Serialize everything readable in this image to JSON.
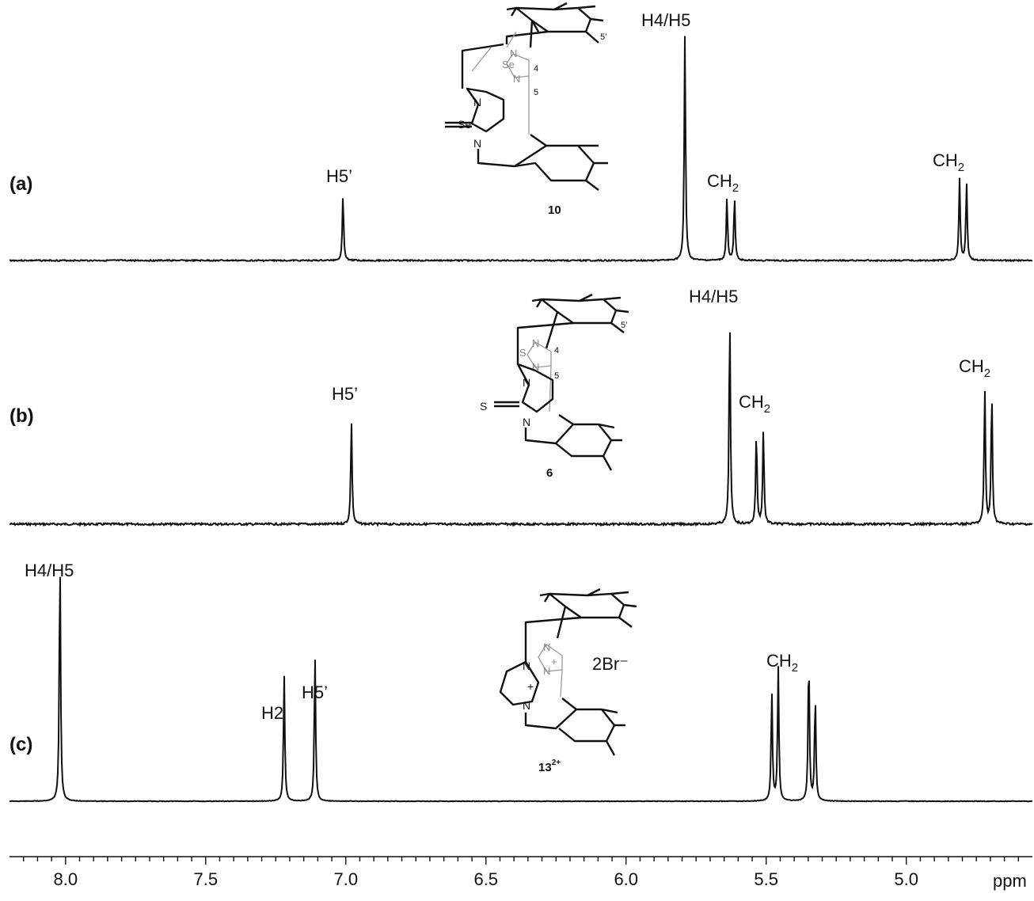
{
  "chart_data": {
    "type": "line",
    "xlabel": "ppm",
    "xlim": [
      8.2,
      4.55
    ],
    "x_reversed": true,
    "x_ticks": [
      "8.0",
      "7.5",
      "7.0",
      "6.5",
      "6.0",
      "5.5",
      "5.0"
    ],
    "x_ticks_values": [
      8.0,
      7.5,
      7.0,
      6.5,
      6.0,
      5.5,
      5.0
    ],
    "grid": false,
    "panels": [
      {
        "panel_label": "(a)",
        "compound": "10",
        "compound_sup": "",
        "counterion": "",
        "peaks": [
          {
            "ppm": 7.01,
            "height": 0.29,
            "label": "H5’"
          },
          {
            "ppm": 5.79,
            "height": 1.0,
            "label": "H4/H5"
          },
          {
            "ppm": 5.64,
            "height": 0.28,
            "label": "CH2"
          },
          {
            "ppm": 5.613,
            "height": 0.28,
            "label": ""
          },
          {
            "ppm": 4.81,
            "height": 0.36,
            "label": "CH2"
          },
          {
            "ppm": 4.785,
            "height": 0.35,
            "label": ""
          }
        ]
      },
      {
        "panel_label": "(b)",
        "compound": "6",
        "compound_sup": "",
        "counterion": "",
        "peaks": [
          {
            "ppm": 6.98,
            "height": 0.49,
            "label": "H5’"
          },
          {
            "ppm": 5.63,
            "height": 1.0,
            "label": "H4/H5"
          },
          {
            "ppm": 5.535,
            "height": 0.44,
            "label": "CH2"
          },
          {
            "ppm": 5.51,
            "height": 0.45,
            "label": ""
          },
          {
            "ppm": 4.72,
            "height": 0.65,
            "label": "CH2"
          },
          {
            "ppm": 4.695,
            "height": 0.63,
            "label": ""
          }
        ]
      },
      {
        "panel_label": "(c)",
        "compound": "13",
        "compound_sup": "2+",
        "counterion": "2Br⁻",
        "peaks": [
          {
            "ppm": 8.02,
            "height": 1.0,
            "label": "H4/H5"
          },
          {
            "ppm": 7.22,
            "height": 0.52,
            "label": "H2"
          },
          {
            "ppm": 7.11,
            "height": 0.6,
            "label": "H5’"
          },
          {
            "ppm": 5.48,
            "height": 0.45,
            "label": ""
          },
          {
            "ppm": 5.457,
            "height": 0.55,
            "label": "CH2"
          },
          {
            "ppm": 5.348,
            "height": 0.6,
            "label": ""
          },
          {
            "ppm": 5.325,
            "height": 0.43,
            "label": ""
          }
        ]
      }
    ]
  },
  "structure_labels": {
    "a": {
      "heteroatom": "Se",
      "ring_atom": "N",
      "pos4": "4",
      "pos5": "5",
      "pos5p": "5’"
    },
    "b": {
      "heteroatom": "S",
      "ring_atom": "N",
      "pos4": "4",
      "pos5": "5",
      "pos5p": "5’"
    },
    "c": {
      "ring_atom": "N",
      "charge": "+"
    }
  }
}
